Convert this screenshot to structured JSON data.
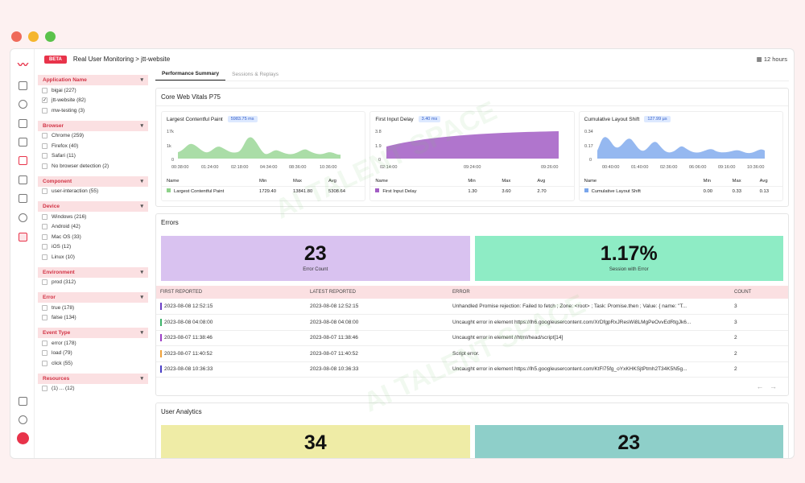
{
  "watermark": "AI TALENT SPACE",
  "window_dots": [
    "#ef6a5a",
    "#f5b62e",
    "#5ac24b"
  ],
  "top": {
    "beta": "BETA",
    "app": "Real User Monitoring",
    "sep": ">",
    "site": "jtt-website",
    "time_range": "12 hours"
  },
  "filters": {
    "app": {
      "title": "Application Name",
      "items": [
        {
          "label": "bigai (227)",
          "checked": false
        },
        {
          "label": "jtt-website (82)",
          "checked": true
        },
        {
          "label": "mw-testing (3)",
          "checked": false
        }
      ]
    },
    "browser": {
      "title": "Browser",
      "items": [
        {
          "label": "Chrome (259)"
        },
        {
          "label": "Firefox (40)"
        },
        {
          "label": "Safari (11)"
        },
        {
          "label": "No browser detection (2)"
        }
      ]
    },
    "component": {
      "title": "Component",
      "items": [
        {
          "label": "user-interaction (55)"
        }
      ]
    },
    "device": {
      "title": "Device",
      "items": [
        {
          "label": "Windows (216)"
        },
        {
          "label": "Android (42)"
        },
        {
          "label": "Mac OS (33)"
        },
        {
          "label": "iOS (12)"
        },
        {
          "label": "Linux (10)"
        }
      ]
    },
    "environment": {
      "title": "Environment",
      "items": [
        {
          "label": "prod (312)"
        }
      ]
    },
    "error": {
      "title": "Error",
      "items": [
        {
          "label": "true (178)"
        },
        {
          "label": "false (134)"
        }
      ]
    },
    "event": {
      "title": "Event Type",
      "items": [
        {
          "label": "error (178)"
        },
        {
          "label": "load (79)"
        },
        {
          "label": "click (55)"
        }
      ]
    },
    "resources": {
      "title": "Resources",
      "items": [
        {
          "label": "(1) ... (12)"
        }
      ]
    }
  },
  "tabs": {
    "summary": "Performance Summary",
    "sessions": "Sessions & Replays"
  },
  "cwv": {
    "title": "Core Web Vitals P75",
    "lcp": {
      "title": "Largest Contentful Paint",
      "badge": "5983.75 ms",
      "yticks": [
        "17k",
        "1k",
        "0"
      ],
      "xticks": [
        "00:38:00",
        "01:24:00",
        "02:18:00",
        "04:34:00",
        "08:36:00",
        "10:36:00"
      ],
      "row": {
        "name": "Largest Contentful Paint",
        "min": "1729.40",
        "max": "13841.80",
        "avg": "5308.64"
      },
      "color": "#8ed28a"
    },
    "fid": {
      "title": "First Input Delay",
      "badge": "3.40 ms",
      "yticks": [
        "3.8",
        "1.9",
        "0"
      ],
      "xticks": [
        "02:14:00",
        "09:24:00",
        "09:26:00"
      ],
      "row": {
        "name": "First Input Delay",
        "min": "1.30",
        "max": "3.60",
        "avg": "2.70"
      },
      "color": "#a25dc4"
    },
    "cls": {
      "title": "Cumulative Layout Shift",
      "badge": "127.99 µs",
      "yticks": [
        "0.34",
        "0.17",
        "0"
      ],
      "xticks": [
        "00:40:00",
        "01:40:00",
        "02:36:00",
        "06:06:00",
        "09:16:00",
        "10:36:00"
      ],
      "row": {
        "name": "Cumulative Layout Shift",
        "min": "0.00",
        "max": "0.33",
        "avg": "0.13"
      },
      "color": "#7aa6ec"
    },
    "cols": {
      "name": "Name",
      "min": "Min",
      "max": "Max",
      "avg": "Avg"
    }
  },
  "errors": {
    "title": "Errors",
    "count": {
      "value": "23",
      "label": "Error Count",
      "color": "#d9c2f0"
    },
    "session": {
      "value": "1.17%",
      "label": "Session with Error",
      "color": "#8eecc5"
    },
    "headers": [
      "FIRST REPORTED",
      "LATEST REPORTED",
      "ERROR",
      "COUNT"
    ],
    "rows": [
      {
        "first": "2023-08-08 12:52:15",
        "latest": "2023-08-08 12:52:15",
        "error": "Unhandled Promise rejection: Failed to fetch ; Zone: <root> ; Task: Promise.then ; Value: { name: \"T...",
        "count": "3",
        "mark": "#6b3fc6"
      },
      {
        "first": "2023-08-08 04:08:00",
        "latest": "2023-08-08 04:08:00",
        "error": "Uncaught error in element https://lh6.googleusercontent.com/XrDfgpRxJResWi8LMgPeOvvEdRtgJk6...",
        "count": "3",
        "mark": "#3db36a"
      },
      {
        "first": "2023-08-07 11:38:46",
        "latest": "2023-08-07 11:38:46",
        "error": "Uncaught error in element //html/head/script[14]",
        "count": "2",
        "mark": "#9c3fc6"
      },
      {
        "first": "2023-08-07 11:40:52",
        "latest": "2023-08-07 11:40:52",
        "error": "Script error.",
        "count": "2",
        "mark": "#f0a23b"
      },
      {
        "first": "2023-08-08 10:36:33",
        "latest": "2023-08-08 10:36:33",
        "error": "Uncaught error in element https://lh5.googleusercontent.com/KtFl75fg_oYxKHKSjtPtmh2T34K5N5g...",
        "count": "2",
        "mark": "#4a3fc6"
      }
    ],
    "prev": "←",
    "next": "→"
  },
  "analytics": {
    "title": "User Analytics",
    "a": {
      "value": "34",
      "color": "#efeca6"
    },
    "b": {
      "value": "23",
      "color": "#8ecfc9"
    }
  }
}
